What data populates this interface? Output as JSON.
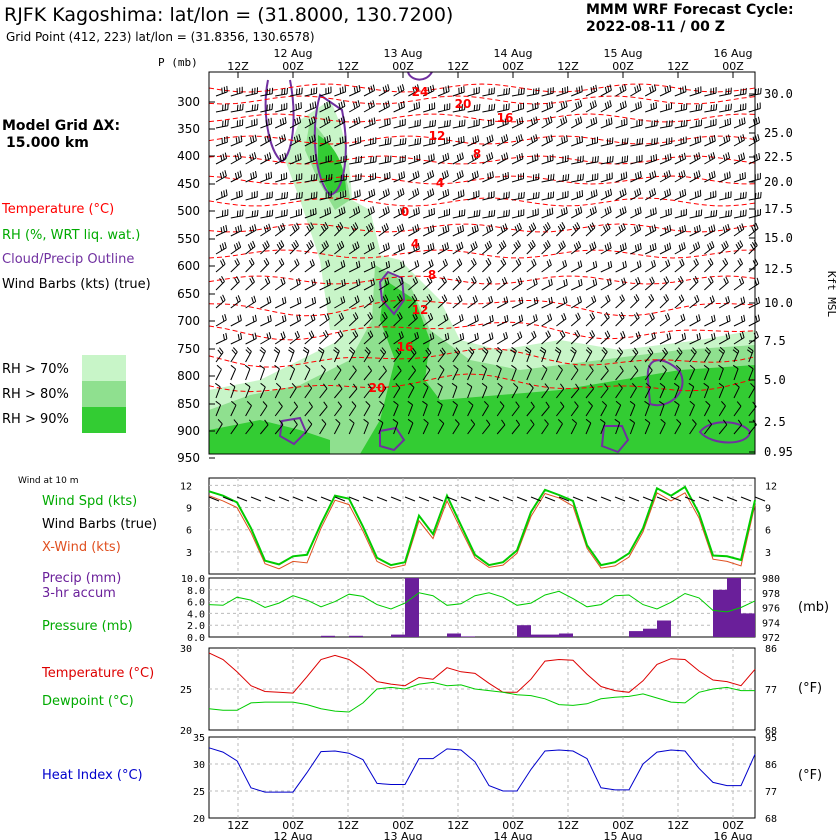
{
  "header": {
    "title": "RJFK Kagoshima:  lat/lon = (31.8000, 130.7200)",
    "subtitle": "Grid Point (412, 223) lat/lon = (31.8356, 130.6578)",
    "cycle_line1": "MMM WRF Forecast Cycle:",
    "cycle_line2": "2022-08-11 / 00  Z"
  },
  "model_grid": {
    "line1": "Model Grid ΔX:",
    "line2": "15.000 km"
  },
  "legend": {
    "temperature": "Temperature (°C)",
    "rh": "RH (%, WRT liq. wat.)",
    "cloud": "Cloud/Precip Outline",
    "wind": "Wind Barbs (kts) (true)",
    "rh70": "RH > 70%",
    "rh80": "RH > 80%",
    "rh90": "RH > 90%",
    "colors": {
      "temperature": "#ff0000",
      "rh": "#00aa00",
      "cloud": "#7030a0",
      "wind": "#000000",
      "rh70": "#c8f5c8",
      "rh80": "#8fe08f",
      "rh90": "#33cc33"
    }
  },
  "top_axis": {
    "p_label": "P (mb)",
    "time_ticks": [
      "12Z",
      "00Z",
      "12Z",
      "00Z",
      "12Z",
      "00Z",
      "12Z",
      "00Z",
      "12Z",
      "00Z"
    ],
    "date_labels": [
      "12 Aug",
      "13 Aug",
      "14 Aug",
      "15 Aug",
      "16 Aug"
    ],
    "pressure_levels": [
      "300",
      "350",
      "400",
      "450",
      "500",
      "550",
      "600",
      "650",
      "700",
      "750",
      "800",
      "850",
      "900",
      "950"
    ],
    "height_labels": [
      "30.0",
      "25.0",
      "22.5",
      "20.0",
      "17.5",
      "15.0",
      "12.5",
      "10.0",
      "7.5",
      "5.0",
      "2.5",
      "0.95"
    ],
    "height_axis_label": "Kft MSL",
    "isotherm_labels": [
      "24",
      "20",
      "16",
      "12",
      "8",
      "4",
      "0",
      "-4",
      "-8",
      "-12",
      "-16",
      "-20"
    ]
  },
  "panels": {
    "wind_title": "Wind at 10 m",
    "wind_spd_label": "Wind Spd (kts)",
    "wind_barbs_label": "Wind Barbs (true)",
    "xwind_label": "X-Wind (kts)",
    "wind_ticks": [
      "12",
      "9",
      "6",
      "3"
    ],
    "precip_label1": "Precip (mm)",
    "precip_label2": "3-hr accum",
    "pressure_label": "Pressure (mb)",
    "precip_ticks": [
      "10.0",
      "8.0",
      "6.0",
      "4.0",
      "2.0",
      "0.0"
    ],
    "pressure_ticks": [
      "980",
      "978",
      "976",
      "974",
      "972"
    ],
    "pressure_unit": "(mb)",
    "temp_label": "Temperature (°C)",
    "dewpoint_label": "Dewpoint (°C)",
    "temp_ticks_c": [
      "30",
      "25",
      "20"
    ],
    "temp_ticks_f": [
      "86",
      "77",
      "68"
    ],
    "temp_unit": "(°F)",
    "heat_label": "Heat Index (°C)",
    "heat_ticks_c": [
      "35",
      "30",
      "25",
      "20"
    ],
    "heat_ticks_f": [
      "95",
      "86",
      "77",
      "68"
    ],
    "heat_unit": "(°F)",
    "bottom_time_ticks": [
      "12Z",
      "00Z",
      "12Z",
      "00Z",
      "12Z",
      "00Z",
      "12Z",
      "00Z",
      "12Z",
      "00Z"
    ],
    "bottom_dates": [
      "12 Aug",
      "13 Aug",
      "14 Aug",
      "15 Aug",
      "16 Aug"
    ]
  },
  "chart_data": [
    {
      "type": "line",
      "title": "Wind at 10 m",
      "x": [
        "11/03Z",
        "11/06Z",
        "11/09Z",
        "11/12Z",
        "11/15Z",
        "11/18Z",
        "11/21Z",
        "12/00Z",
        "12/03Z",
        "12/06Z",
        "12/09Z",
        "12/12Z",
        "12/15Z",
        "12/18Z",
        "12/21Z",
        "13/00Z",
        "13/03Z",
        "13/06Z",
        "13/09Z",
        "13/12Z",
        "13/15Z",
        "13/18Z",
        "13/21Z",
        "14/00Z",
        "14/03Z",
        "14/06Z",
        "14/09Z",
        "14/12Z",
        "14/15Z",
        "14/18Z",
        "14/21Z",
        "15/00Z",
        "15/03Z",
        "15/06Z",
        "15/09Z",
        "15/12Z",
        "15/15Z",
        "15/18Z",
        "15/21Z",
        "16/00Z"
      ],
      "series": [
        {
          "name": "Wind Spd (kts)",
          "color": "#00cc00",
          "values": [
            11.2,
            10.6,
            9.7,
            6.2,
            1.8,
            1.3,
            2.4,
            2.6,
            6.8,
            10.6,
            10.2,
            6.4,
            2.2,
            1.2,
            1.6,
            7.9,
            5.4,
            10.6,
            6.6,
            2.6,
            1.2,
            1.6,
            3.2,
            8.4,
            11.4,
            10.7,
            9.9,
            3.9,
            1.2,
            1.6,
            2.8,
            6.2,
            11.6,
            10.6,
            11.8,
            8.2,
            2.5,
            2.4,
            1.9,
            10.0
          ]
        },
        {
          "name": "X-Wind (kts)",
          "color": "#e05020",
          "values": [
            10.6,
            9.9,
            9.0,
            5.6,
            1.4,
            0.7,
            1.7,
            1.5,
            6.2,
            10.0,
            9.4,
            5.8,
            1.7,
            0.8,
            1.2,
            7.2,
            4.8,
            9.9,
            6.0,
            2.2,
            0.9,
            1.2,
            2.8,
            7.8,
            10.9,
            10.3,
            9.2,
            3.5,
            0.8,
            1.1,
            2.3,
            5.7,
            11.0,
            9.9,
            11.0,
            7.6,
            2.0,
            1.7,
            1.1,
            9.4
          ]
        }
      ],
      "ylim": [
        0,
        13
      ]
    },
    {
      "type": "bar",
      "title": "Precip (mm) 3-hr accum / Pressure (mb)",
      "x": [
        "12/06Z",
        "12/12Z",
        "12/21Z",
        "13/00Z",
        "13/09Z",
        "13/12Z",
        "14/00Z",
        "14/03Z",
        "14/06Z",
        "14/09Z",
        "15/00Z",
        "15/03Z",
        "15/06Z",
        "15/18Z",
        "15/21Z",
        "16/00Z"
      ],
      "series": [
        {
          "name": "Precip (mm)",
          "color": "#6a1f9a",
          "values": [
            0.2,
            0.2,
            0.4,
            10.0,
            0.6,
            0.1,
            2.0,
            0.4,
            0.4,
            0.6,
            1.0,
            1.4,
            2.8,
            8.0,
            10.0,
            4.0
          ]
        }
      ],
      "ylim": [
        0,
        10
      ],
      "pressure_series": {
        "name": "Pressure (mb)",
        "color": "#00cc00",
        "x": [
          "11/03Z",
          "11/06Z",
          "11/09Z",
          "11/12Z",
          "11/15Z",
          "11/18Z",
          "11/21Z",
          "12/00Z",
          "12/03Z",
          "12/06Z",
          "12/09Z",
          "12/12Z",
          "12/15Z",
          "12/18Z",
          "12/21Z",
          "13/00Z",
          "13/03Z",
          "13/06Z",
          "13/09Z",
          "13/12Z",
          "13/15Z",
          "13/18Z",
          "13/21Z",
          "14/00Z",
          "14/03Z",
          "14/06Z",
          "14/09Z",
          "14/12Z",
          "14/15Z",
          "14/18Z",
          "14/21Z",
          "15/00Z",
          "15/03Z",
          "15/06Z",
          "15/09Z",
          "15/12Z",
          "15/15Z",
          "15/18Z",
          "15/21Z",
          "16/00Z"
        ],
        "values": [
          976.4,
          976.3,
          977.4,
          977.0,
          976.0,
          976.6,
          977.6,
          977.0,
          976.1,
          976.8,
          977.8,
          977.5,
          976.4,
          975.8,
          976.6,
          978.0,
          977.6,
          976.3,
          976.5,
          977.6,
          978.0,
          977.4,
          976.3,
          976.6,
          977.7,
          978.2,
          977.2,
          976.1,
          976.4,
          977.6,
          977.7,
          976.4,
          975.8,
          976.7,
          977.9,
          977.3,
          975.6,
          975.4,
          976.0,
          976.9
        ],
        "ylim": [
          972,
          980
        ]
      }
    },
    {
      "type": "line",
      "title": "Temperature / Dewpoint",
      "x": [
        "11/03Z",
        "11/06Z",
        "11/09Z",
        "11/12Z",
        "11/15Z",
        "11/18Z",
        "11/21Z",
        "12/00Z",
        "12/03Z",
        "12/06Z",
        "12/09Z",
        "12/12Z",
        "12/15Z",
        "12/18Z",
        "12/21Z",
        "13/00Z",
        "13/03Z",
        "13/06Z",
        "13/09Z",
        "13/12Z",
        "13/15Z",
        "13/18Z",
        "13/21Z",
        "14/00Z",
        "14/03Z",
        "14/06Z",
        "14/09Z",
        "14/12Z",
        "14/15Z",
        "14/18Z",
        "14/21Z",
        "15/00Z",
        "15/03Z",
        "15/06Z",
        "15/09Z",
        "15/12Z",
        "15/15Z",
        "15/18Z",
        "15/21Z",
        "16/00Z"
      ],
      "series": [
        {
          "name": "Temperature (°C)",
          "color": "#dd0000",
          "values": [
            29.4,
            28.6,
            27.1,
            25.4,
            24.7,
            24.6,
            24.5,
            26.5,
            28.6,
            29.1,
            28.6,
            27.4,
            25.9,
            25.6,
            25.4,
            26.4,
            26.2,
            27.6,
            27.1,
            26.9,
            25.7,
            24.6,
            24.6,
            26.2,
            28.4,
            28.6,
            28.5,
            26.8,
            25.3,
            24.8,
            24.6,
            26.0,
            28.0,
            28.7,
            28.6,
            27.2,
            26.1,
            25.9,
            25.4,
            27.4
          ]
        },
        {
          "name": "Dewpoint (°C)",
          "color": "#00cc00",
          "values": [
            22.6,
            22.4,
            22.4,
            23.3,
            23.4,
            23.4,
            23.4,
            23.1,
            22.6,
            22.3,
            22.2,
            23.3,
            25.0,
            25.2,
            25.0,
            25.6,
            25.8,
            25.4,
            25.5,
            25.0,
            24.8,
            24.6,
            24.3,
            24.2,
            23.8,
            23.1,
            23.0,
            23.2,
            23.8,
            24.0,
            24.1,
            24.4,
            23.9,
            23.4,
            23.3,
            24.6,
            25.0,
            25.2,
            24.8,
            24.8
          ]
        }
      ],
      "ylim": [
        20,
        30
      ]
    },
    {
      "type": "line",
      "title": "Heat Index (°C)",
      "x": [
        "11/03Z",
        "11/06Z",
        "11/09Z",
        "11/12Z",
        "11/15Z",
        "11/18Z",
        "11/21Z",
        "12/00Z",
        "12/03Z",
        "12/06Z",
        "12/09Z",
        "12/12Z",
        "12/15Z",
        "12/18Z",
        "12/21Z",
        "13/00Z",
        "13/03Z",
        "13/06Z",
        "13/09Z",
        "13/12Z",
        "13/15Z",
        "13/18Z",
        "13/21Z",
        "14/00Z",
        "14/03Z",
        "14/06Z",
        "14/09Z",
        "14/12Z",
        "14/15Z",
        "14/18Z",
        "14/21Z",
        "15/00Z",
        "15/03Z",
        "15/06Z",
        "15/09Z",
        "15/12Z",
        "15/15Z",
        "15/18Z",
        "15/21Z",
        "16/00Z"
      ],
      "series": [
        {
          "name": "Heat Index (°C)",
          "color": "#0000cc",
          "values": [
            33.0,
            32.2,
            30.6,
            25.6,
            24.8,
            24.8,
            24.8,
            28.4,
            32.3,
            32.4,
            32.0,
            30.8,
            26.4,
            26.2,
            26.2,
            31.0,
            31.0,
            32.8,
            32.6,
            30.4,
            26.0,
            25.0,
            25.0,
            29.0,
            32.4,
            32.6,
            32.4,
            31.0,
            25.6,
            25.2,
            25.2,
            30.0,
            32.2,
            32.6,
            32.4,
            29.2,
            26.6,
            26.0,
            26.0,
            31.8
          ]
        }
      ],
      "ylim": [
        20,
        35
      ]
    }
  ]
}
